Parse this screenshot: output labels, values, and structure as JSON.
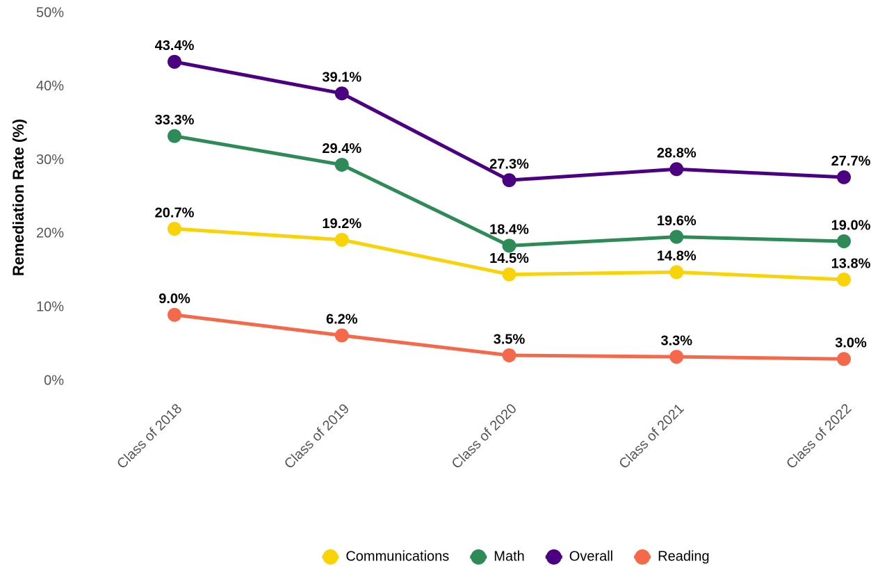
{
  "chart_data": {
    "type": "line",
    "y_label": "Remediation Rate (%)",
    "categories": [
      "Class of 2018",
      "Class of 2019",
      "Class of 2020",
      "Class of 2021",
      "Class of 2022"
    ],
    "series": [
      {
        "name": "Communications",
        "color": "#f7d308",
        "values": [
          20.7,
          19.2,
          14.5,
          14.8,
          13.8
        ],
        "value_labels": [
          "20.7%",
          "19.2%",
          "14.5%",
          "14.8%",
          "13.8%"
        ]
      },
      {
        "name": "Math",
        "color": "#2e8b57",
        "values": [
          33.3,
          29.4,
          18.4,
          19.6,
          19.0
        ],
        "value_labels": [
          "33.3%",
          "29.4%",
          "18.4%",
          "19.6%",
          "19.0%"
        ]
      },
      {
        "name": "Overall",
        "color": "#4b0082",
        "values": [
          43.4,
          39.1,
          27.3,
          28.8,
          27.7
        ],
        "value_labels": [
          "43.4%",
          "39.1%",
          "27.3%",
          "28.8%",
          "27.7%"
        ]
      },
      {
        "name": "Reading",
        "color": "#f5694b",
        "values": [
          9.0,
          6.2,
          3.5,
          3.3,
          3.0
        ],
        "value_labels": [
          "9.0%",
          "6.2%",
          "3.5%",
          "3.3%",
          "3.0%"
        ]
      }
    ],
    "ylim": [
      0,
      50
    ],
    "yticks": [
      {
        "value": 0,
        "label": "0%"
      },
      {
        "value": 10,
        "label": "10%"
      },
      {
        "value": 20,
        "label": "20%"
      },
      {
        "value": 30,
        "label": "30%"
      },
      {
        "value": 40,
        "label": "40%"
      },
      {
        "value": 50,
        "label": "50%"
      }
    ],
    "grid": false,
    "legend": "bottom"
  }
}
